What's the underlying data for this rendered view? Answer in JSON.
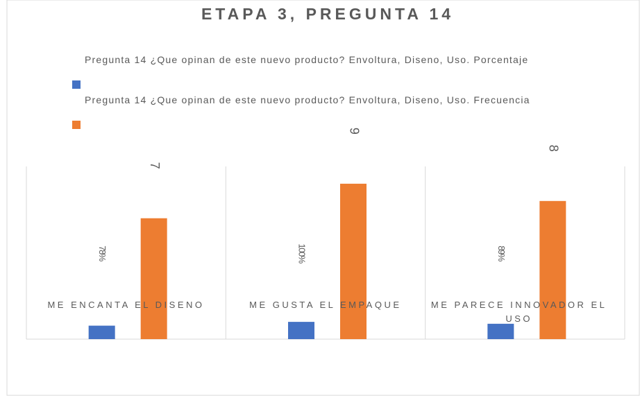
{
  "chart_data": {
    "type": "bar",
    "title": "ETAPA 3, PREGUNTA 14",
    "categories": [
      "ME ENCANTA EL DISENO",
      "ME GUSTA EL EMPAQUE",
      "ME PARECE INNOVADOR EL USO"
    ],
    "series": [
      {
        "name": "Pregunta 14 ¿Que opinan de este nuevo producto? Envoltura, Diseno, Uso. Porcentaje",
        "color": "#4472c4",
        "values": [
          0.78,
          1,
          0.89
        ],
        "value_labels": [
          "78%",
          "100%",
          "89%"
        ]
      },
      {
        "name": "Pregunta 14 ¿Que opinan de este nuevo producto? Envoltura, Diseno, Uso. Frecuencia",
        "color": "#ed7d31",
        "values": [
          7,
          9,
          8
        ]
      }
    ],
    "ylim": [
      0,
      10
    ]
  }
}
